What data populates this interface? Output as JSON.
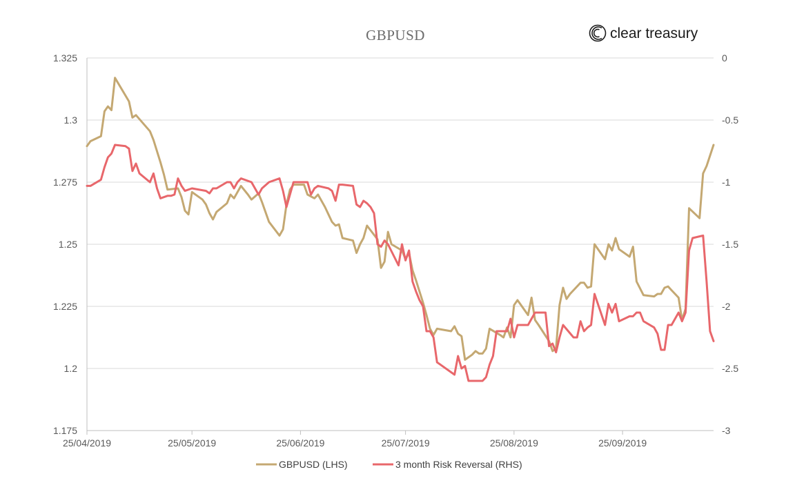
{
  "brand": {
    "name": "clear treasury",
    "logo_icon": "clear-treasury-logo-icon"
  },
  "chart_data": {
    "type": "line",
    "title": "GBPUSD",
    "xlabel": "",
    "ylabel_left": "",
    "ylabel_right": "",
    "x_range": [
      "2019-04-25",
      "2019-10-21"
    ],
    "x_tick_labels": [
      "25/04/2019",
      "25/05/2019",
      "25/06/2019",
      "25/07/2019",
      "25/08/2019",
      "25/09/2019"
    ],
    "x_tick_days": [
      0,
      30,
      61,
      91,
      122,
      153
    ],
    "x_max_day": 179,
    "ylim_left": [
      1.175,
      1.325
    ],
    "yticks_left": [
      1.325,
      1.3,
      1.275,
      1.25,
      1.225,
      1.2,
      1.175
    ],
    "ytick_labels_left": [
      "1.325",
      "1.3",
      "1.275",
      "1.25",
      "1.225",
      "1.2",
      "1.175"
    ],
    "ylim_right": [
      -3,
      0
    ],
    "yticks_right": [
      0,
      -0.5,
      -1,
      -1.5,
      -2,
      -2.5,
      -3
    ],
    "ytick_labels_right": [
      "0",
      "-0.5",
      "-1",
      "-1.5",
      "-2",
      "-2.5",
      "-3"
    ],
    "grid": true,
    "legend_position": "bottom",
    "series": [
      {
        "name": "GBPUSD (LHS)",
        "axis": "left",
        "color": "#c4a872",
        "points": [
          [
            0,
            1.2895
          ],
          [
            1,
            1.2915
          ],
          [
            4,
            1.2935
          ],
          [
            5,
            1.3035
          ],
          [
            6,
            1.3055
          ],
          [
            7,
            1.304
          ],
          [
            8,
            1.317
          ],
          [
            12,
            1.3075
          ],
          [
            13,
            1.301
          ],
          [
            14,
            1.302
          ],
          [
            18,
            1.2955
          ],
          [
            19,
            1.292
          ],
          [
            21,
            1.283
          ],
          [
            22,
            1.278
          ],
          [
            23,
            1.272
          ],
          [
            26,
            1.2725
          ],
          [
            27,
            1.269
          ],
          [
            28,
            1.2635
          ],
          [
            29,
            1.262
          ],
          [
            30,
            1.271
          ],
          [
            33,
            1.268
          ],
          [
            34,
            1.266
          ],
          [
            35,
            1.2625
          ],
          [
            36,
            1.26
          ],
          [
            37,
            1.263
          ],
          [
            40,
            1.2665
          ],
          [
            41,
            1.27
          ],
          [
            42,
            1.2685
          ],
          [
            44,
            1.2735
          ],
          [
            46,
            1.27
          ],
          [
            47,
            1.268
          ],
          [
            49,
            1.2705
          ],
          [
            50,
            1.267
          ],
          [
            52,
            1.259
          ],
          [
            55,
            1.2535
          ],
          [
            56,
            1.256
          ],
          [
            57,
            1.266
          ],
          [
            58,
            1.272
          ],
          [
            59,
            1.274
          ],
          [
            62,
            1.274
          ],
          [
            63,
            1.27
          ],
          [
            65,
            1.2685
          ],
          [
            66,
            1.27
          ],
          [
            68,
            1.265
          ],
          [
            69,
            1.262
          ],
          [
            70,
            1.259
          ],
          [
            71,
            1.2575
          ],
          [
            72,
            1.258
          ],
          [
            73,
            1.2525
          ],
          [
            76,
            1.2515
          ],
          [
            77,
            1.2465
          ],
          [
            78,
            1.25
          ],
          [
            79,
            1.2525
          ],
          [
            80,
            1.2575
          ],
          [
            83,
            1.252
          ],
          [
            84,
            1.2405
          ],
          [
            85,
            1.243
          ],
          [
            86,
            1.255
          ],
          [
            87,
            1.25
          ],
          [
            90,
            1.2475
          ],
          [
            91,
            1.244
          ],
          [
            92,
            1.2465
          ],
          [
            93,
            1.2395
          ],
          [
            94,
            1.2355
          ],
          [
            95,
            1.231
          ],
          [
            96,
            1.2265
          ],
          [
            97,
            1.2215
          ],
          [
            98,
            1.216
          ],
          [
            99,
            1.2135
          ],
          [
            100,
            1.216
          ],
          [
            104,
            1.215
          ],
          [
            105,
            1.217
          ],
          [
            106,
            1.214
          ],
          [
            107,
            1.213
          ],
          [
            108,
            1.2035
          ],
          [
            110,
            1.2055
          ],
          [
            111,
            1.207
          ],
          [
            112,
            1.206
          ],
          [
            113,
            1.206
          ],
          [
            114,
            1.208
          ],
          [
            115,
            1.216
          ],
          [
            118,
            1.2135
          ],
          [
            119,
            1.2125
          ],
          [
            120,
            1.2165
          ],
          [
            121,
            1.2125
          ],
          [
            122,
            1.2255
          ],
          [
            123,
            1.2275
          ],
          [
            126,
            1.2215
          ],
          [
            127,
            1.2285
          ],
          [
            128,
            1.2195
          ],
          [
            129,
            1.2175
          ],
          [
            132,
            1.211
          ],
          [
            133,
            1.207
          ],
          [
            134,
            1.208
          ],
          [
            135,
            1.2255
          ],
          [
            136,
            1.2325
          ],
          [
            137,
            1.228
          ],
          [
            138,
            1.23
          ],
          [
            141,
            1.2345
          ],
          [
            142,
            1.2345
          ],
          [
            143,
            1.2325
          ],
          [
            144,
            1.233
          ],
          [
            145,
            1.25
          ],
          [
            148,
            1.244
          ],
          [
            149,
            1.25
          ],
          [
            150,
            1.2475
          ],
          [
            151,
            1.2525
          ],
          [
            152,
            1.248
          ],
          [
            155,
            1.245
          ],
          [
            156,
            1.249
          ],
          [
            157,
            1.235
          ],
          [
            159,
            1.2295
          ],
          [
            162,
            1.229
          ],
          [
            163,
            1.23
          ],
          [
            164,
            1.23
          ],
          [
            165,
            1.2325
          ],
          [
            166,
            1.233
          ],
          [
            167,
            1.2315
          ],
          [
            169,
            1.2285
          ],
          [
            170,
            1.2195
          ],
          [
            171,
            1.224
          ],
          [
            172,
            1.2645
          ],
          [
            175,
            1.2605
          ],
          [
            176,
            1.2785
          ],
          [
            177,
            1.2815
          ],
          [
            179,
            1.29
          ]
        ]
      },
      {
        "name": "3 month Risk Reversal (RHS)",
        "axis": "right",
        "color": "#e8676b",
        "points": [
          [
            0,
            -1.03
          ],
          [
            1,
            -1.03
          ],
          [
            4,
            -0.98
          ],
          [
            5,
            -0.88
          ],
          [
            6,
            -0.8
          ],
          [
            7,
            -0.77
          ],
          [
            8,
            -0.7
          ],
          [
            11,
            -0.71
          ],
          [
            12,
            -0.73
          ],
          [
            13,
            -0.91
          ],
          [
            14,
            -0.85
          ],
          [
            15,
            -0.93
          ],
          [
            18,
            -1.0
          ],
          [
            19,
            -0.93
          ],
          [
            20,
            -1.05
          ],
          [
            21,
            -1.13
          ],
          [
            23,
            -1.11
          ],
          [
            24,
            -1.11
          ],
          [
            25,
            -1.1
          ],
          [
            26,
            -0.97
          ],
          [
            27,
            -1.03
          ],
          [
            28,
            -1.07
          ],
          [
            30,
            -1.05
          ],
          [
            34,
            -1.07
          ],
          [
            35,
            -1.09
          ],
          [
            36,
            -1.05
          ],
          [
            37,
            -1.05
          ],
          [
            40,
            -1.0
          ],
          [
            41,
            -1.0
          ],
          [
            42,
            -1.05
          ],
          [
            43,
            -1.0
          ],
          [
            44,
            -0.97
          ],
          [
            47,
            -1.0
          ],
          [
            48,
            -1.05
          ],
          [
            49,
            -1.1
          ],
          [
            50,
            -1.05
          ],
          [
            52,
            -1.0
          ],
          [
            55,
            -0.97
          ],
          [
            56,
            -1.07
          ],
          [
            57,
            -1.2
          ],
          [
            58,
            -1.1
          ],
          [
            59,
            -1.0
          ],
          [
            62,
            -1.0
          ],
          [
            63,
            -1.0
          ],
          [
            64,
            -1.1
          ],
          [
            65,
            -1.05
          ],
          [
            66,
            -1.03
          ],
          [
            69,
            -1.05
          ],
          [
            70,
            -1.07
          ],
          [
            71,
            -1.15
          ],
          [
            72,
            -1.02
          ],
          [
            73,
            -1.02
          ],
          [
            76,
            -1.03
          ],
          [
            77,
            -1.18
          ],
          [
            78,
            -1.2
          ],
          [
            79,
            -1.15
          ],
          [
            80,
            -1.17
          ],
          [
            81,
            -1.2
          ],
          [
            82,
            -1.25
          ],
          [
            83,
            -1.5
          ],
          [
            84,
            -1.52
          ],
          [
            85,
            -1.47
          ],
          [
            86,
            -1.5
          ],
          [
            89,
            -1.67
          ],
          [
            90,
            -1.5
          ],
          [
            91,
            -1.63
          ],
          [
            92,
            -1.55
          ],
          [
            93,
            -1.8
          ],
          [
            94,
            -1.88
          ],
          [
            95,
            -1.95
          ],
          [
            96,
            -2.0
          ],
          [
            97,
            -2.2
          ],
          [
            98,
            -2.2
          ],
          [
            99,
            -2.25
          ],
          [
            100,
            -2.45
          ],
          [
            105,
            -2.55
          ],
          [
            106,
            -2.4
          ],
          [
            107,
            -2.5
          ],
          [
            108,
            -2.48
          ],
          [
            109,
            -2.6
          ],
          [
            113,
            -2.6
          ],
          [
            114,
            -2.57
          ],
          [
            115,
            -2.47
          ],
          [
            116,
            -2.4
          ],
          [
            117,
            -2.2
          ],
          [
            120,
            -2.2
          ],
          [
            121,
            -2.1
          ],
          [
            122,
            -2.25
          ],
          [
            123,
            -2.15
          ],
          [
            124,
            -2.15
          ],
          [
            126,
            -2.15
          ],
          [
            127,
            -2.1
          ],
          [
            128,
            -2.05
          ],
          [
            131,
            -2.05
          ],
          [
            132,
            -2.32
          ],
          [
            133,
            -2.3
          ],
          [
            134,
            -2.37
          ],
          [
            135,
            -2.25
          ],
          [
            136,
            -2.15
          ],
          [
            139,
            -2.25
          ],
          [
            140,
            -2.25
          ],
          [
            141,
            -2.12
          ],
          [
            142,
            -2.2
          ],
          [
            143,
            -2.17
          ],
          [
            144,
            -2.15
          ],
          [
            145,
            -1.9
          ],
          [
            148,
            -2.15
          ],
          [
            149,
            -1.98
          ],
          [
            150,
            -2.05
          ],
          [
            151,
            -1.98
          ],
          [
            152,
            -2.12
          ],
          [
            155,
            -2.08
          ],
          [
            156,
            -2.08
          ],
          [
            157,
            -2.05
          ],
          [
            158,
            -2.05
          ],
          [
            159,
            -2.12
          ],
          [
            162,
            -2.17
          ],
          [
            163,
            -2.22
          ],
          [
            164,
            -2.35
          ],
          [
            165,
            -2.35
          ],
          [
            166,
            -2.15
          ],
          [
            167,
            -2.15
          ],
          [
            168,
            -2.1
          ],
          [
            169,
            -2.05
          ],
          [
            170,
            -2.12
          ],
          [
            171,
            -2.05
          ],
          [
            172,
            -1.55
          ],
          [
            173,
            -1.45
          ],
          [
            176,
            -1.43
          ],
          [
            177,
            -1.8
          ],
          [
            178,
            -2.2
          ],
          [
            179,
            -2.28
          ]
        ]
      }
    ]
  }
}
